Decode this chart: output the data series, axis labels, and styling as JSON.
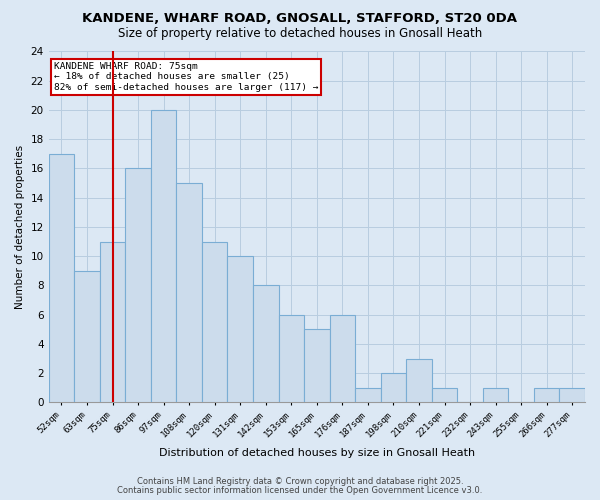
{
  "title": "KANDENE, WHARF ROAD, GNOSALL, STAFFORD, ST20 0DA",
  "subtitle": "Size of property relative to detached houses in Gnosall Heath",
  "xlabel": "Distribution of detached houses by size in Gnosall Heath",
  "ylabel": "Number of detached properties",
  "categories": [
    "52sqm",
    "63sqm",
    "75sqm",
    "86sqm",
    "97sqm",
    "108sqm",
    "120sqm",
    "131sqm",
    "142sqm",
    "153sqm",
    "165sqm",
    "176sqm",
    "187sqm",
    "198sqm",
    "210sqm",
    "221sqm",
    "232sqm",
    "243sqm",
    "255sqm",
    "266sqm",
    "277sqm"
  ],
  "values": [
    17,
    9,
    11,
    16,
    20,
    15,
    11,
    10,
    8,
    6,
    5,
    6,
    1,
    2,
    3,
    1,
    0,
    1,
    0,
    1,
    1
  ],
  "bar_color": "#ccdcec",
  "bar_edge_color": "#7aadd4",
  "bar_linewidth": 0.8,
  "marker_index": 2,
  "marker_color": "#cc0000",
  "ylim": [
    0,
    24
  ],
  "yticks": [
    0,
    2,
    4,
    6,
    8,
    10,
    12,
    14,
    16,
    18,
    20,
    22,
    24
  ],
  "annotation_title": "KANDENE WHARF ROAD: 75sqm",
  "annotation_line1": "← 18% of detached houses are smaller (25)",
  "annotation_line2": "82% of semi-detached houses are larger (117) →",
  "annotation_box_color": "#ffffff",
  "annotation_box_edge": "#cc0000",
  "grid_color": "#b8cde0",
  "background_color": "#dce8f4",
  "plot_bg_color": "#dce8f4",
  "footer_line1": "Contains HM Land Registry data © Crown copyright and database right 2025.",
  "footer_line2": "Contains public sector information licensed under the Open Government Licence v3.0."
}
